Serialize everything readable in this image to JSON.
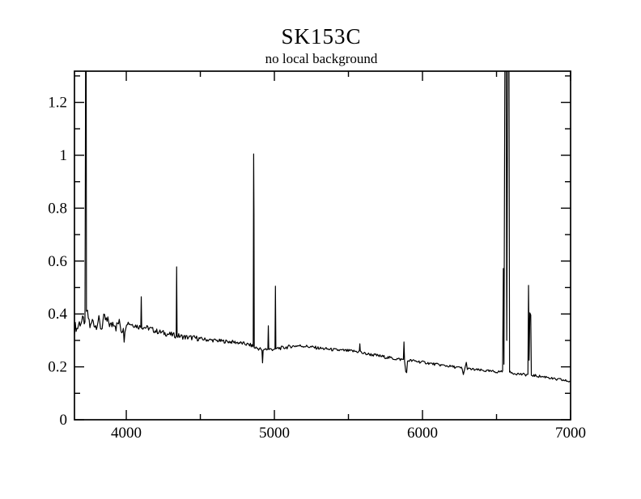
{
  "header": {
    "title": "SK153C",
    "subtitle": "no local background"
  },
  "chart_data": {
    "type": "line",
    "title": "SK153C",
    "subtitle": "no local background",
    "xlabel": "",
    "ylabel": "",
    "xlim": [
      3650,
      7000
    ],
    "ylim": [
      0,
      1.318
    ],
    "x_major_ticks": [
      4000,
      5000,
      6000,
      7000
    ],
    "x_major_tick_labels": [
      "4000",
      "5000",
      "6000",
      "7000"
    ],
    "x_minor_ticks": [
      4500,
      5500,
      6500
    ],
    "y_major_ticks": [
      0,
      0.2,
      0.4,
      0.6,
      0.8,
      1.0,
      1.2
    ],
    "y_major_tick_labels": [
      "0",
      "0.2",
      "0.4",
      "0.6",
      "0.8",
      "1",
      "1.2"
    ],
    "y_minor_ticks": [
      0.1,
      0.3,
      0.5,
      0.7,
      0.9,
      1.1,
      1.3
    ],
    "grid": false,
    "legend": "none",
    "colors": {
      "line": "#000000",
      "frame": "#000000",
      "background": "#ffffff"
    },
    "series_name": "spectrum (no local background)",
    "sample_step": 5.5,
    "noise_regions": [
      [
        3650,
        4000,
        0.022
      ],
      [
        4000,
        4500,
        0.01
      ],
      [
        4500,
        5100,
        0.007
      ],
      [
        5100,
        6000,
        0.006
      ],
      [
        6000,
        7000,
        0.005
      ]
    ],
    "continuum_anchors": [
      [
        3652,
        0.345
      ],
      [
        3660,
        0.355
      ],
      [
        3668,
        0.34
      ],
      [
        3676,
        0.36
      ],
      [
        3690,
        0.37
      ],
      [
        3705,
        0.372
      ],
      [
        3715,
        0.375
      ],
      [
        3735,
        0.4
      ],
      [
        3745,
        0.385
      ],
      [
        3758,
        0.345
      ],
      [
        3768,
        0.37
      ],
      [
        3778,
        0.378
      ],
      [
        3790,
        0.352
      ],
      [
        3800,
        0.365
      ],
      [
        3812,
        0.378
      ],
      [
        3822,
        0.36
      ],
      [
        3832,
        0.345
      ],
      [
        3845,
        0.378
      ],
      [
        3858,
        0.38
      ],
      [
        3870,
        0.368
      ],
      [
        3882,
        0.372
      ],
      [
        3895,
        0.35
      ],
      [
        3908,
        0.368
      ],
      [
        3920,
        0.372
      ],
      [
        3933,
        0.348
      ],
      [
        3945,
        0.368
      ],
      [
        3958,
        0.36
      ],
      [
        3970,
        0.335
      ],
      [
        3980,
        0.36
      ],
      [
        3988,
        0.29
      ],
      [
        3996,
        0.365
      ],
      [
        4010,
        0.368
      ],
      [
        4030,
        0.362
      ],
      [
        4055,
        0.358
      ],
      [
        4080,
        0.352
      ],
      [
        4120,
        0.35
      ],
      [
        4160,
        0.345
      ],
      [
        4200,
        0.335
      ],
      [
        4240,
        0.33
      ],
      [
        4280,
        0.324
      ],
      [
        4320,
        0.32
      ],
      [
        4360,
        0.316
      ],
      [
        4400,
        0.312
      ],
      [
        4450,
        0.31
      ],
      [
        4500,
        0.306
      ],
      [
        4550,
        0.302
      ],
      [
        4600,
        0.3
      ],
      [
        4650,
        0.297
      ],
      [
        4700,
        0.295
      ],
      [
        4750,
        0.292
      ],
      [
        4800,
        0.287
      ],
      [
        4840,
        0.282
      ],
      [
        4875,
        0.272
      ],
      [
        4900,
        0.268
      ],
      [
        4940,
        0.268
      ],
      [
        4975,
        0.266
      ],
      [
        5020,
        0.27
      ],
      [
        5060,
        0.272
      ],
      [
        5110,
        0.277
      ],
      [
        5160,
        0.28
      ],
      [
        5210,
        0.278
      ],
      [
        5260,
        0.274
      ],
      [
        5310,
        0.27
      ],
      [
        5360,
        0.267
      ],
      [
        5410,
        0.264
      ],
      [
        5460,
        0.262
      ],
      [
        5510,
        0.26
      ],
      [
        5560,
        0.258
      ],
      [
        5610,
        0.25
      ],
      [
        5660,
        0.246
      ],
      [
        5710,
        0.241
      ],
      [
        5760,
        0.236
      ],
      [
        5810,
        0.231
      ],
      [
        5855,
        0.228
      ],
      [
        5910,
        0.224
      ],
      [
        5960,
        0.221
      ],
      [
        6010,
        0.217
      ],
      [
        6060,
        0.212
      ],
      [
        6110,
        0.208
      ],
      [
        6160,
        0.204
      ],
      [
        6210,
        0.2
      ],
      [
        6255,
        0.196
      ],
      [
        6310,
        0.192
      ],
      [
        6360,
        0.189
      ],
      [
        6410,
        0.186
      ],
      [
        6460,
        0.183
      ],
      [
        6510,
        0.181
      ],
      [
        6535,
        0.183
      ],
      [
        6595,
        0.178
      ],
      [
        6640,
        0.174
      ],
      [
        6680,
        0.171
      ],
      [
        6705,
        0.17
      ],
      [
        6740,
        0.168
      ],
      [
        6780,
        0.165
      ],
      [
        6820,
        0.162
      ],
      [
        6845,
        0.162
      ],
      [
        6860,
        0.158
      ],
      [
        6900,
        0.152
      ],
      [
        6930,
        0.152
      ],
      [
        6960,
        0.148
      ],
      [
        6985,
        0.146
      ],
      [
        7000,
        0.143
      ]
    ],
    "features": [
      {
        "name": "[O II] 3727 (clipped at top, shoulder 1.03)",
        "points": [
          [
            3721,
            0.37
          ],
          [
            3724,
            1.03
          ],
          [
            3725.5,
            1.45
          ],
          [
            3729,
            1.45
          ],
          [
            3731,
            0.41
          ]
        ]
      },
      {
        "name": "H-delta 4102",
        "points": [
          [
            4098,
            0.35
          ],
          [
            4101,
            0.465
          ],
          [
            4104,
            0.345
          ]
        ]
      },
      {
        "name": "H-gamma 4340",
        "points": [
          [
            4337,
            0.318
          ],
          [
            4340,
            0.578
          ],
          [
            4343,
            0.315
          ]
        ]
      },
      {
        "name": "H-beta 4861 (double top 1.005 / 0.78)",
        "points": [
          [
            4857,
            0.28
          ],
          [
            4860,
            1.005
          ],
          [
            4862,
            0.78
          ],
          [
            4864,
            0.272
          ]
        ]
      },
      {
        "name": "absorption dip 4920",
        "points": [
          [
            4916,
            0.262
          ],
          [
            4920,
            0.215
          ],
          [
            4924,
            0.262
          ]
        ]
      },
      {
        "name": "[O III] 4959",
        "points": [
          [
            4956,
            0.268
          ],
          [
            4959,
            0.355
          ],
          [
            4962,
            0.266
          ]
        ]
      },
      {
        "name": "[O III] 5007",
        "points": [
          [
            5004,
            0.268
          ],
          [
            5007,
            0.505
          ],
          [
            5010,
            0.268
          ]
        ]
      },
      {
        "name": "night-sky 5577",
        "points": [
          [
            5574,
            0.262
          ],
          [
            5577,
            0.287
          ],
          [
            5580,
            0.26
          ]
        ]
      },
      {
        "name": "He I 5876 emission + Na D absorption",
        "points": [
          [
            5871,
            0.228
          ],
          [
            5875,
            0.294
          ],
          [
            5879,
            0.222
          ],
          [
            5887,
            0.182
          ],
          [
            5893,
            0.178
          ],
          [
            5899,
            0.222
          ]
        ]
      },
      {
        "name": "O2 band 6280 dip + [O I] 6300",
        "points": [
          [
            6268,
            0.192
          ],
          [
            6276,
            0.171
          ],
          [
            6285,
            0.192
          ],
          [
            6296,
            0.217
          ],
          [
            6303,
            0.19
          ]
        ]
      },
      {
        "name": "[N II] 6548 + H-alpha 6563 (clipped) + [N II] 6584 (clipped)",
        "points": [
          [
            6541,
            0.185
          ],
          [
            6546,
            0.572
          ],
          [
            6550,
            0.21
          ],
          [
            6557,
            1.45
          ],
          [
            6565,
            1.45
          ],
          [
            6569,
            0.3
          ],
          [
            6576,
            1.45
          ],
          [
            6584,
            1.45
          ],
          [
            6588,
            0.18
          ]
        ]
      },
      {
        "name": "[S II] 6717 + [S II] 6731",
        "points": [
          [
            6712,
            0.172
          ],
          [
            6716,
            0.508
          ],
          [
            6720,
            0.225
          ],
          [
            6725,
            0.404
          ],
          [
            6731,
            0.396
          ],
          [
            6735,
            0.168
          ]
        ]
      }
    ]
  }
}
